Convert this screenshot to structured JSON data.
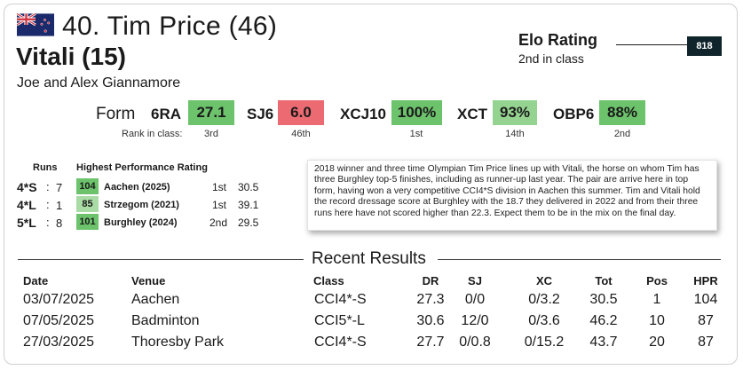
{
  "header": {
    "title": "40. Tim Price (46)",
    "horse": "Vitali (15)",
    "owners": "Joe and Alex Giannamore",
    "flag_icon": "new-zealand-flag-icon"
  },
  "elo": {
    "label": "Elo Rating",
    "sub": "2nd in class",
    "value": "818"
  },
  "form": {
    "label": "Form",
    "rank_label": "Rank in class:",
    "items": [
      {
        "code": "6RA",
        "value": "27.1",
        "rank": "3rd",
        "color": "#6cc36c"
      },
      {
        "code": "SJ6",
        "value": "6.0",
        "rank": "46th",
        "color": "#ec6b72"
      },
      {
        "code": "XCJ10",
        "value": "100%",
        "rank": "1st",
        "color": "#6cc36c"
      },
      {
        "code": "XCT",
        "value": "93%",
        "rank": "14th",
        "color": "#95d490"
      },
      {
        "code": "OBP6",
        "value": "88%",
        "rank": "2nd",
        "color": "#6cc36c"
      }
    ]
  },
  "runs": {
    "runs_header": "Runs",
    "hpr_header": "Highest Performance Rating",
    "rows": [
      {
        "code": "4*S",
        "count": "7",
        "hpr": "104",
        "hpr_color": "#6cc36c",
        "venue": "Aachen (2025)",
        "pos": "1st",
        "dr": "30.5"
      },
      {
        "code": "4*L",
        "count": "1",
        "hpr": "85",
        "hpr_color": "#a9dba5",
        "venue": "Strzegom (2021)",
        "pos": "1st",
        "dr": "39.1"
      },
      {
        "code": "5*L",
        "count": "8",
        "hpr": "101",
        "hpr_color": "#6cc36c",
        "venue": "Burghley (2024)",
        "pos": "2nd",
        "dr": "29.5"
      }
    ]
  },
  "comment": "2018 winner and three time Olympian Tim Price lines up with Vitali, the horse on whom Tim has three Burghley top-5 finishes, including as runner-up last year. The pair are arrive here in top form, having won a very competitive CCI4*S division in Aachen this summer. Tim and Vitali hold the record dressage score at Burghley with the 18.7 they delivered in 2022 and from their three runs here have not scored higher than 22.3. Expect them to be in the mix on the final day.",
  "recent": {
    "title": "Recent Results",
    "columns": [
      "Date",
      "Venue",
      "Class",
      "DR",
      "SJ",
      "XC",
      "Tot",
      "Pos",
      "HPR"
    ],
    "rows": [
      [
        "03/07/2025",
        "Aachen",
        "CCI4*-S",
        "27.3",
        "0/0",
        "0/3.2",
        "30.5",
        "1",
        "104"
      ],
      [
        "07/05/2025",
        "Badminton",
        "CCI5*-L",
        "30.6",
        "12/0",
        "0/3.6",
        "46.2",
        "10",
        "87"
      ],
      [
        "27/03/2025",
        "Thoresby Park",
        "CCI4*-S",
        "27.7",
        "0/0.8",
        "0/15.2",
        "43.7",
        "20",
        "87"
      ]
    ]
  }
}
